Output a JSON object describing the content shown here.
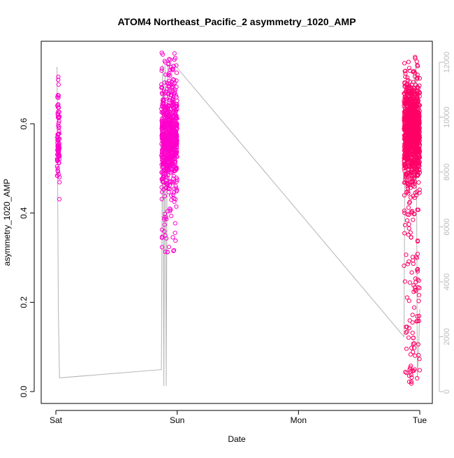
{
  "chart_data": {
    "type": "scatter",
    "title": "ATOM4 Northeast_Pacific_2 asymmetry_1020_AMP",
    "xlabel": "Date",
    "ylabel": "asymmetry_1020_AMP",
    "x_ticks": [
      "Sat",
      "Sun",
      "Mon",
      "Tue"
    ],
    "x_range_days": [
      0,
      3
    ],
    "ylim": [
      0,
      0.75
    ],
    "y_ticks": [
      0.0,
      0.2,
      0.4,
      0.6
    ],
    "y_tick_labels": [
      "0.0",
      "0.2",
      "0.4",
      "0.6"
    ],
    "y2lim": [
      0,
      12000
    ],
    "y2_ticks": [
      0,
      2000,
      4000,
      6000,
      8000,
      10000,
      12000
    ],
    "y2_tick_labels": [
      "0",
      "2000",
      "4000",
      "6000",
      "8000",
      "10000",
      "12000"
    ],
    "grid": false,
    "colors": {
      "points_magenta": "#ff00cc",
      "points_red": "#ff0066",
      "line_gray": "#b4b4b4",
      "axis_right": "#bbbbbb",
      "text": "#000000"
    },
    "series": [
      {
        "kind": "scatter",
        "axis": "left",
        "clusters": [
          {
            "x_start": 0.01,
            "x_end": 0.03,
            "y_min": 0.42,
            "y_max": 0.76,
            "y_center": 0.56,
            "count": 90,
            "color": "#ff00cc"
          },
          {
            "x_start": 0.87,
            "x_end": 1.0,
            "y_min": 0.31,
            "y_max": 0.76,
            "y_center": 0.57,
            "count": 700,
            "color": "#ff00cc"
          },
          {
            "x_start": 2.87,
            "x_end": 3.0,
            "y_min": 0.01,
            "y_max": 0.75,
            "y_center": 0.58,
            "count": 1100,
            "color": "#ff0066"
          }
        ]
      },
      {
        "kind": "line",
        "axis": "right",
        "points": [
          [
            0.0,
            11800
          ],
          [
            0.01,
            11800
          ],
          [
            0.02,
            3000
          ],
          [
            0.03,
            500
          ],
          [
            0.87,
            800
          ],
          [
            0.88,
            11900
          ],
          [
            0.89,
            200
          ],
          [
            0.9,
            11900
          ],
          [
            0.91,
            200
          ],
          [
            0.92,
            11900
          ],
          [
            0.98,
            11900
          ],
          [
            2.87,
            2000
          ],
          [
            2.88,
            11000
          ],
          [
            2.9,
            9000
          ],
          [
            2.95,
            11000
          ],
          [
            2.97,
            12000
          ],
          [
            2.98,
            500
          ],
          [
            2.99,
            1500
          ],
          [
            3.0,
            3000
          ]
        ]
      }
    ]
  }
}
